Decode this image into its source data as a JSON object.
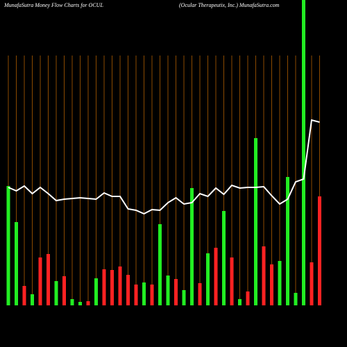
{
  "chart_data": {
    "type": "bar",
    "title": "MunafaSutra  Money Flow  Charts for OCUL",
    "subtitle": "(Ocular Therapeutix, Inc.) MunafaSutra.com",
    "categories": [
      null,
      null,
      null,
      null,
      null,
      null,
      null,
      null,
      null,
      null,
      null,
      null,
      null,
      null,
      null,
      null,
      null,
      null,
      null,
      null,
      null,
      null,
      null,
      null,
      null,
      null,
      null,
      null,
      null,
      null,
      null,
      null,
      null,
      null,
      null,
      null,
      null,
      null,
      null,
      null
    ],
    "values": [
      172,
      120,
      28,
      16,
      69,
      74,
      35,
      42,
      9,
      5,
      6,
      39,
      52,
      51,
      56,
      44,
      30,
      33,
      30,
      117,
      43,
      38,
      22,
      169,
      32,
      75,
      83,
      136,
      69,
      9,
      20,
      241,
      85,
      59,
      64,
      185,
      18,
      440,
      62,
      157
    ],
    "colors": [
      "#22ee22",
      "#22ee22",
      "#ff2222",
      "#22ee22",
      "#ff2222",
      "#ff2222",
      "#22ee22",
      "#ff2222",
      "#22ee22",
      "#22ee22",
      "#ff2222",
      "#22ee22",
      "#ff2222",
      "#ff2222",
      "#ff2222",
      "#ff2222",
      "#ff2222",
      "#22ee22",
      "#ff2222",
      "#22ee22",
      "#22ee22",
      "#ff2222",
      "#22ee22",
      "#22ee22",
      "#ff2222",
      "#22ee22",
      "#ff2222",
      "#22ee22",
      "#ff2222",
      "#22ee22",
      "#ff2222",
      "#22ee22",
      "#ff2222",
      "#ff2222",
      "#22ee22",
      "#22ee22",
      "#22ee22",
      "#22ee22",
      "#ff2222",
      "#ff2222"
    ],
    "line": {
      "color": "#ffffff",
      "values": [
        170,
        165,
        172,
        161,
        170,
        161,
        151,
        153,
        154,
        155,
        154,
        153,
        162,
        157,
        157,
        139,
        137,
        132,
        138,
        137,
        148,
        155,
        146,
        148,
        161,
        157,
        169,
        160,
        173,
        169,
        170,
        170,
        171,
        158,
        146,
        153,
        178,
        182,
        267,
        264
      ]
    },
    "ylim": [
      0,
      440
    ],
    "grid": true,
    "grid_color": "#8b4a00"
  }
}
